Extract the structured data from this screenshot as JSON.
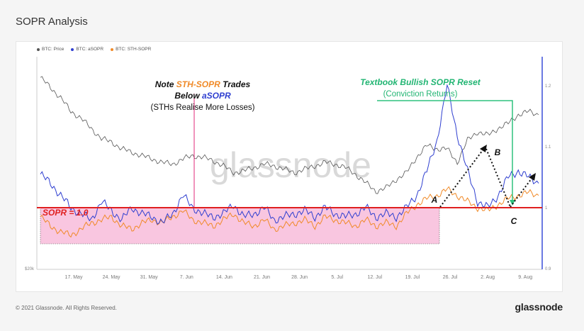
{
  "page": {
    "title": "SOPR Analysis",
    "copyright": "© 2021 Glassnode. All Rights Reserved.",
    "brand": "glassnode",
    "watermark": "glassnode"
  },
  "legend": [
    {
      "label": "BTC: Price",
      "color": "#555555"
    },
    {
      "label": "BTC: aSOPR",
      "color": "#2f3fd0"
    },
    {
      "label": "BTC: STH-SOPR",
      "color": "#f08a28"
    }
  ],
  "annotations": {
    "note_prefix": "Note ",
    "note_sth": "STH-SOPR",
    "note_trades": " Trades",
    "note_below": "Below ",
    "note_asopr": "aSOPR",
    "note_paren": "(STHs Realise More Losses)",
    "reset_title": "Textbook Bullish SOPR Reset",
    "reset_sub": "(Conviction Returns)",
    "sopr_line": "SOPR = 1.0",
    "point_a": "A",
    "point_b": "B",
    "point_c": "C"
  },
  "colors": {
    "price": "#555555",
    "asopr": "#2f3fd0",
    "sth": "#f08a28",
    "sopr_line": "#e02020",
    "loss_zone": "#f9c6e0",
    "note_line": "#e0287a",
    "reset": "#2ec27e",
    "reset_text": "#22b573"
  },
  "chart_data": {
    "type": "line",
    "x_ticks": [
      "17. May",
      "24. May",
      "31. May",
      "7. Jun",
      "14. Jun",
      "21. Jun",
      "28. Jun",
      "5. Jul",
      "12. Jul",
      "19. Jul",
      "26. Jul",
      "2. Aug",
      "9. Aug"
    ],
    "y_left_ticks": [
      "$20k"
    ],
    "y_right_ticks": [
      "1.2",
      "1.1",
      "1",
      "0.9"
    ],
    "y_right_range": [
      0.9,
      1.23
    ],
    "sopr_reference": 1.0,
    "series": [
      {
        "name": "BTC: Price",
        "values": [
          0.92,
          0.86,
          0.8,
          0.72,
          0.68,
          0.62,
          0.56,
          0.54,
          0.5,
          0.48,
          0.46,
          0.44,
          0.42,
          0.41,
          0.44,
          0.46,
          0.45,
          0.43,
          0.4,
          0.36,
          0.37,
          0.39,
          0.41,
          0.4,
          0.38,
          0.36,
          0.38,
          0.4,
          0.42,
          0.41,
          0.39,
          0.35,
          0.3,
          0.25,
          0.27,
          0.32,
          0.36,
          0.45,
          0.52,
          0.5,
          0.5,
          0.42,
          0.55,
          0.6,
          0.58,
          0.62,
          0.65,
          0.7,
          0.72,
          0.7
        ]
      },
      {
        "name": "BTC: aSOPR",
        "values": [
          1.055,
          1.04,
          1.02,
          1.0,
          0.99,
          0.98,
          1.01,
          0.995,
          0.98,
          1.0,
          0.99,
          0.985,
          0.975,
          0.99,
          1.02,
          1.0,
          0.99,
          0.985,
          0.99,
          1.005,
          0.985,
          0.99,
          1.0,
          0.98,
          0.985,
          0.99,
          0.995,
          0.985,
          1.0,
          0.99,
          0.985,
          0.99,
          1.0,
          0.985,
          0.99,
          0.985,
          1.0,
          1.02,
          1.06,
          1.11,
          1.2,
          1.12,
          1.06,
          1.01,
          1.0,
          1.02,
          1.05,
          1.06,
          1.05,
          1.04
        ]
      },
      {
        "name": "BTC: STH-SOPR",
        "values": [
          0.985,
          0.97,
          0.96,
          0.955,
          0.965,
          0.975,
          0.98,
          0.985,
          0.97,
          0.965,
          0.975,
          0.98,
          0.975,
          0.985,
          0.995,
          0.98,
          0.975,
          0.97,
          0.98,
          0.99,
          0.975,
          0.97,
          0.98,
          0.965,
          0.97,
          0.975,
          0.98,
          0.97,
          0.985,
          0.98,
          0.975,
          0.97,
          0.98,
          0.97,
          0.975,
          0.97,
          0.99,
          1.005,
          1.015,
          1.02,
          1.03,
          1.02,
          1.01,
          1.0,
          0.995,
          1.005,
          1.015,
          1.02,
          1.025,
          1.02
        ]
      }
    ]
  }
}
